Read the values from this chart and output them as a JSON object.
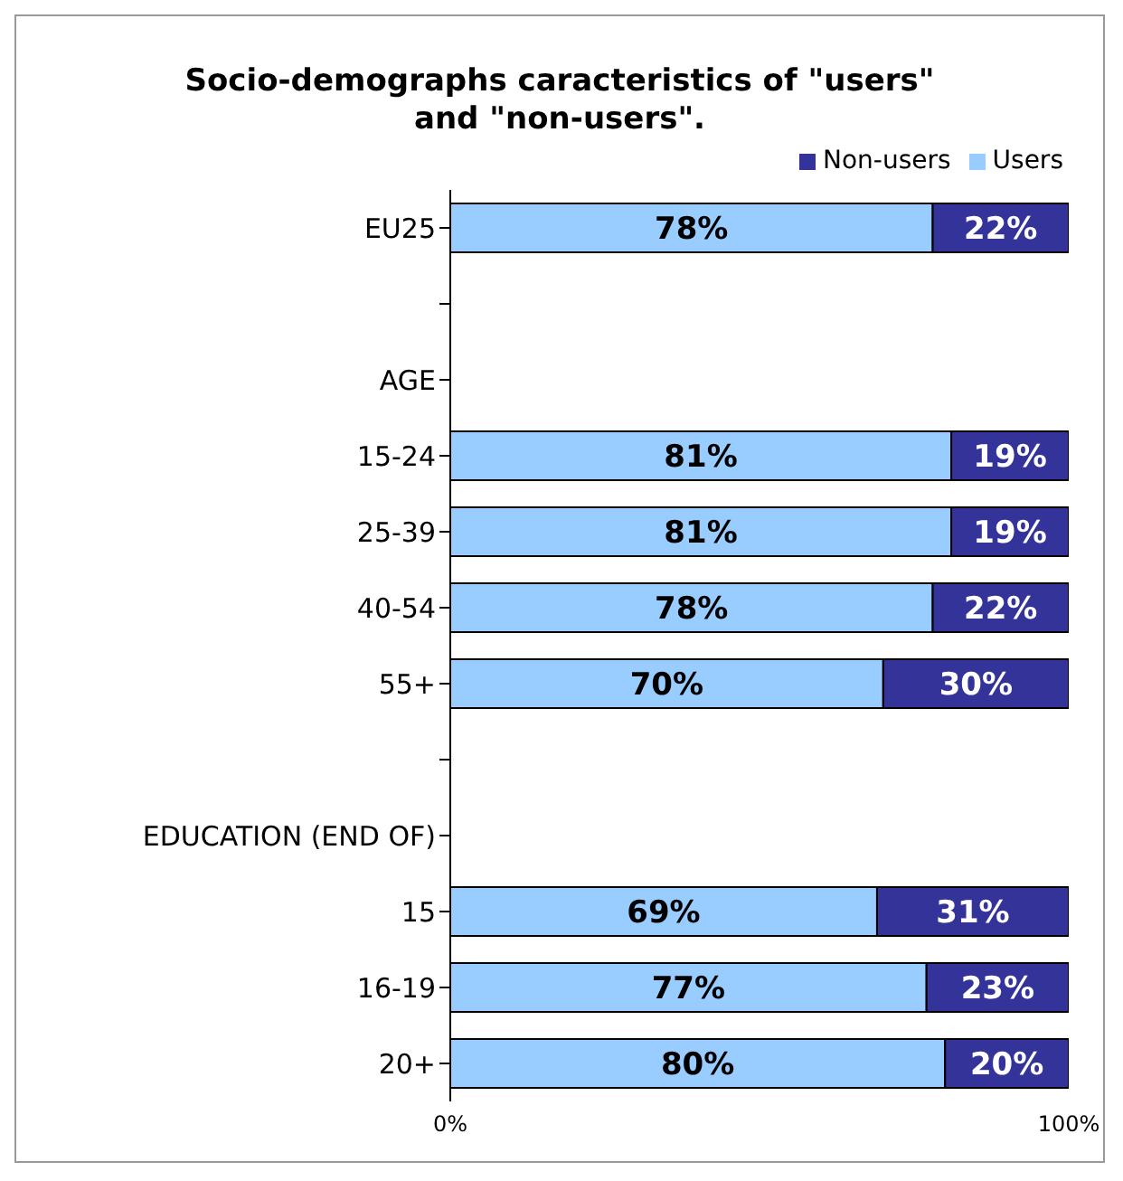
{
  "chart_data": {
    "type": "bar",
    "orientation": "horizontal",
    "stacked": true,
    "title": "Socio-demographs caracteristics of \"users\" and \"non-users\".",
    "categories": [
      "EU25",
      null,
      "AGE",
      "15-24",
      "25-39",
      "40-54",
      "55+",
      null,
      "EDUCATION (END OF)",
      "15",
      "16-19",
      "20+"
    ],
    "series": [
      {
        "name": "Users",
        "color": "#99ccff",
        "values": [
          78,
          null,
          null,
          81,
          81,
          78,
          70,
          null,
          null,
          69,
          77,
          80
        ],
        "value_labels": [
          "78%",
          null,
          null,
          "81%",
          "81%",
          "78%",
          "70%",
          null,
          null,
          "69%",
          "77%",
          "80%"
        ]
      },
      {
        "name": "Non-users",
        "color": "#333399",
        "values": [
          22,
          null,
          null,
          19,
          19,
          22,
          30,
          null,
          null,
          31,
          23,
          20
        ],
        "value_labels": [
          "22%",
          null,
          null,
          "19%",
          "19%",
          "22%",
          "30%",
          null,
          null,
          "31%",
          "23%",
          "20%"
        ]
      }
    ],
    "xlim": [
      0,
      100
    ],
    "xticks": [
      {
        "value": 0,
        "label": "0%"
      },
      {
        "value": 100,
        "label": "100%"
      }
    ],
    "legend": "top",
    "grid": false
  }
}
